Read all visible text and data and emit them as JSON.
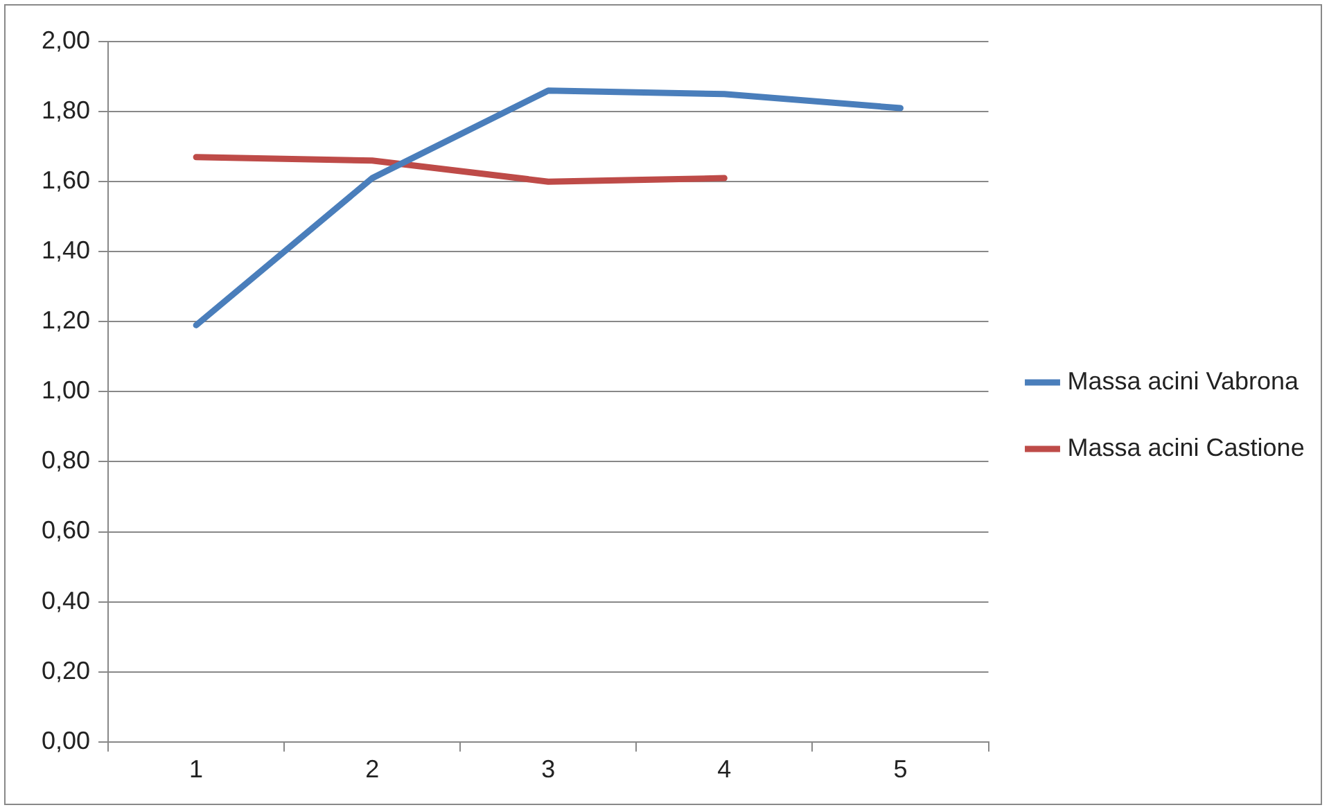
{
  "chart_data": {
    "type": "line",
    "categories": [
      "1",
      "2",
      "3",
      "4",
      "5"
    ],
    "series": [
      {
        "name": "Massa acini Vabrona",
        "color": "#4a7ebb",
        "values": [
          1.19,
          1.61,
          1.86,
          1.85,
          1.81
        ]
      },
      {
        "name": "Massa acini Castione",
        "color": "#be4b48",
        "values": [
          1.67,
          1.66,
          1.6,
          1.61,
          null
        ]
      }
    ],
    "ylim": [
      0,
      2
    ],
    "yticks": [
      {
        "value": 0,
        "label": "0,00"
      },
      {
        "value": 0.2,
        "label": "0,20"
      },
      {
        "value": 0.4,
        "label": "0,40"
      },
      {
        "value": 0.6,
        "label": "0,60"
      },
      {
        "value": 0.8,
        "label": "0,80"
      },
      {
        "value": 1,
        "label": "1,00"
      },
      {
        "value": 1.2,
        "label": "1,20"
      },
      {
        "value": 1.4,
        "label": "1,40"
      },
      {
        "value": 1.6,
        "label": "1,60"
      },
      {
        "value": 1.8,
        "label": "1,80"
      },
      {
        "value": 2,
        "label": "2,00"
      }
    ],
    "grid": "y",
    "legend": "right",
    "marker": "none",
    "line_style": "solid"
  }
}
